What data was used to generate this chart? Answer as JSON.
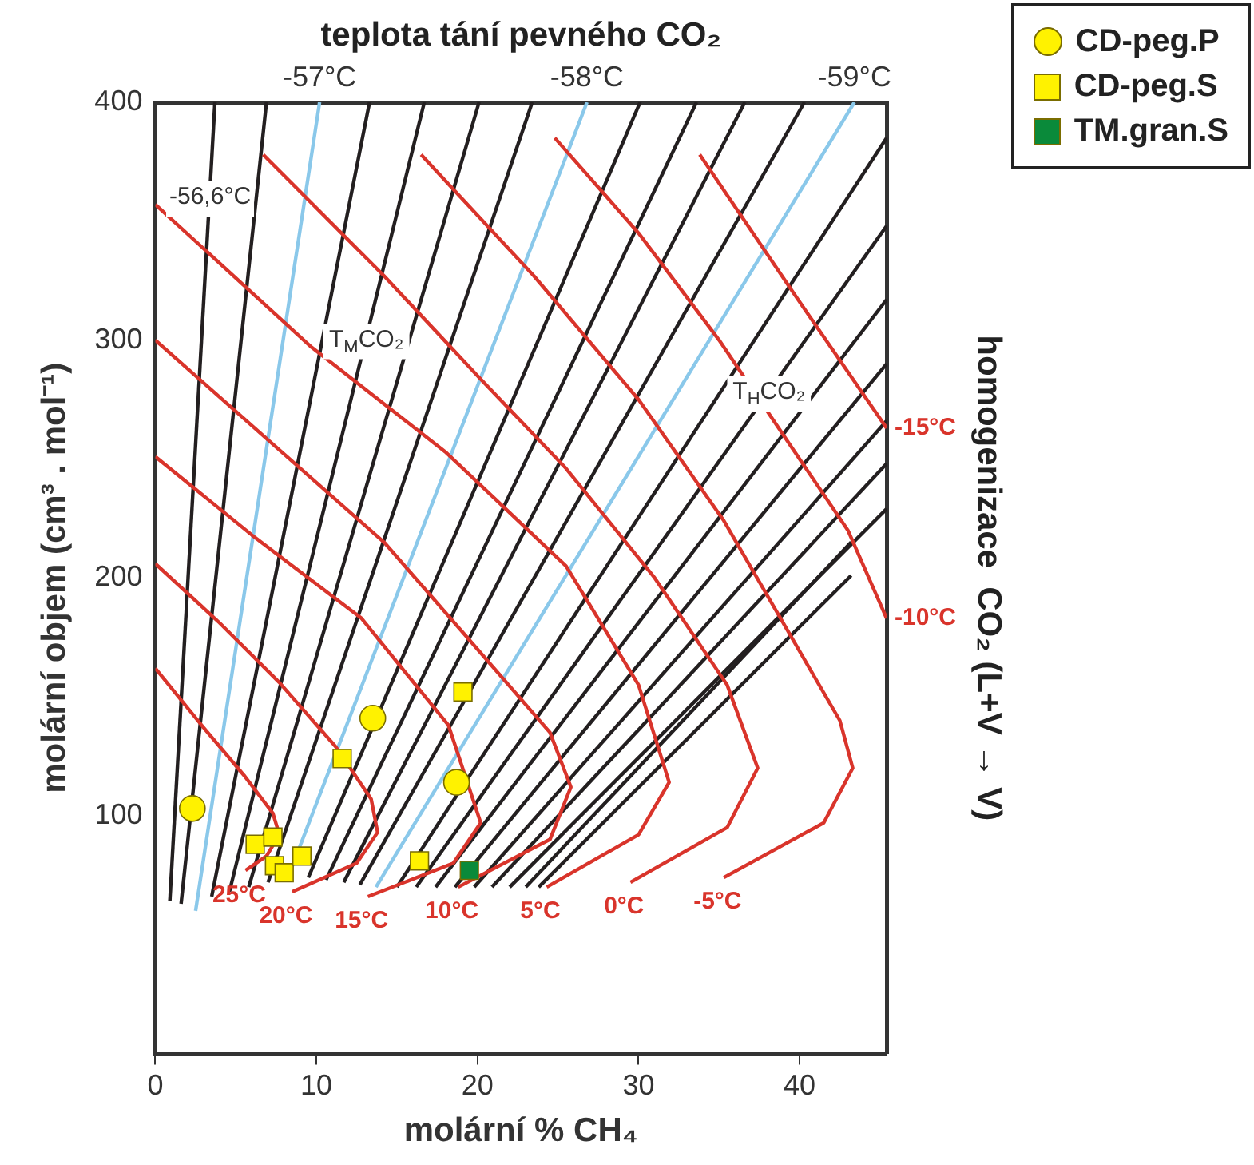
{
  "chart_data": {
    "type": "scatter",
    "xlabel": "molární % CH₄",
    "ylabel": "molární objem (cm³ . mol⁻¹)",
    "x2label": "teplota tání pevného CO₂",
    "y2label": "homogenizace  CO₂ (L+V → V)",
    "xlim": [
      0,
      45.4
    ],
    "xticks": [
      0,
      10,
      20,
      30,
      40
    ],
    "ylim": [
      0,
      400
    ],
    "yticks": [
      100,
      200,
      300,
      400
    ],
    "legend": "top right",
    "grid": false,
    "annotations": [
      {
        "text": "-56,6°C",
        "x": 3.4,
        "y": 360
      },
      {
        "text": "T$_{M}$CO₂",
        "x": 13.1,
        "y": 300
      },
      {
        "text": "T$_{H}$CO₂",
        "x": 38.1,
        "y": 278
      }
    ],
    "series": [
      {
        "name": "CD-peg.P",
        "marker": "circle",
        "color": "#fff200",
        "x": [
          2.3,
          13.5,
          18.7
        ],
        "values": [
          103,
          141,
          114
        ]
      },
      {
        "name": "CD-peg.S",
        "marker": "square",
        "color": "#fff200",
        "x": [
          6.2,
          7.3,
          7.4,
          8.0,
          9.1,
          11.6,
          19.1,
          16.4
        ],
        "values": [
          88,
          91,
          79,
          76,
          83,
          124,
          152,
          81
        ]
      },
      {
        "name": "TM.gran.S",
        "marker": "square",
        "color": "#0a8a3a",
        "x": [
          19.5
        ],
        "values": [
          77
        ]
      },
      {
        "name": "25°C",
        "type": "line",
        "color": "#d9342b",
        "x": [
          0,
          3,
          5.5,
          7.3,
          7.7,
          6.9,
          5.6
        ],
        "values": [
          162,
          137,
          117,
          101,
          92,
          83,
          77
        ]
      },
      {
        "name": "20°C",
        "type": "line",
        "color": "#d9342b",
        "x": [
          0,
          4,
          7.7,
          11.2,
          13.4,
          13.8,
          12.5,
          8.5
        ],
        "values": [
          206,
          181,
          156,
          129,
          107,
          93,
          80,
          68
        ]
      },
      {
        "name": "15°C",
        "type": "line",
        "color": "#d9342b",
        "x": [
          0,
          6,
          12.8,
          18.2,
          20.2,
          18.5,
          13.2
        ],
        "values": [
          251,
          218,
          183,
          138,
          97,
          80,
          66
        ]
      },
      {
        "name": "10°C",
        "type": "line",
        "color": "#d9342b",
        "x": [
          0,
          7,
          14.2,
          20,
          24.5,
          25.8,
          24.5,
          18.8
        ],
        "values": [
          300,
          258,
          215,
          170,
          135,
          112,
          90,
          70
        ]
      },
      {
        "name": "5°C",
        "type": "line",
        "color": "#d9342b",
        "x": [
          0,
          9.7,
          18,
          25.5,
          30,
          31.9,
          30,
          24.3
        ],
        "values": [
          357,
          297,
          253,
          205,
          155,
          114,
          92,
          70
        ]
      },
      {
        "name": "0°C",
        "type": "line",
        "color": "#d9342b",
        "x": [
          6.7,
          14.2,
          20,
          25.5,
          31,
          35.5,
          37.4,
          35.5,
          29.5
        ],
        "values": [
          378,
          327,
          285,
          246,
          200,
          155,
          120,
          95,
          72
        ]
      },
      {
        "name": "-5°C",
        "type": "line",
        "color": "#d9342b",
        "x": [
          16.5,
          23.5,
          30,
          35.3,
          39.5,
          42.5,
          43.3,
          41.5,
          35.3
        ],
        "values": [
          378,
          327,
          275,
          224,
          175,
          140,
          120,
          97,
          74
        ]
      },
      {
        "name": "-10°C",
        "type": "line",
        "color": "#d9342b",
        "x": [
          24.8,
          30,
          35,
          40,
          43,
          45.4
        ],
        "values": [
          385,
          345,
          300,
          250,
          220,
          183
        ]
      },
      {
        "name": "-15°C",
        "type": "line",
        "color": "#d9342b",
        "x": [
          33.8,
          39.6,
          45.4
        ],
        "values": [
          378,
          320,
          263
        ]
      },
      {
        "name": "-57°C",
        "type": "line",
        "color": "#8ac8ea",
        "x": [
          2.5,
          10.2
        ],
        "values": [
          60,
          400
        ]
      },
      {
        "name": "-58°C",
        "type": "line",
        "color": "#8ac8ea",
        "x": [
          8.4,
          26.8
        ],
        "values": [
          77,
          400
        ]
      },
      {
        "name": "-59°C",
        "type": "line",
        "color": "#8ac8ea",
        "x": [
          13.7,
          43.4
        ],
        "values": [
          70,
          400
        ]
      },
      {
        "type": "line",
        "color": "#231f20",
        "x": [
          0.9,
          3.7
        ],
        "values": [
          64,
          400
        ]
      },
      {
        "type": "line",
        "color": "#231f20",
        "x": [
          1.6,
          6.9
        ],
        "values": [
          63,
          400
        ]
      },
      {
        "type": "line",
        "color": "#231f20",
        "x": [
          3.5,
          13.3
        ],
        "values": [
          66,
          400
        ]
      },
      {
        "type": "line",
        "color": "#231f20",
        "x": [
          4.6,
          16.7
        ],
        "values": [
          68,
          400
        ]
      },
      {
        "type": "line",
        "color": "#231f20",
        "x": [
          5.8,
          20.1
        ],
        "values": [
          70,
          400
        ]
      },
      {
        "type": "line",
        "color": "#231f20",
        "x": [
          7.0,
          23.4
        ],
        "values": [
          72,
          400
        ]
      },
      {
        "type": "line",
        "color": "#231f20",
        "x": [
          9.5,
          30.1
        ],
        "values": [
          74,
          400
        ]
      },
      {
        "type": "line",
        "color": "#231f20",
        "x": [
          10.6,
          33.6
        ],
        "values": [
          73,
          400
        ]
      },
      {
        "type": "line",
        "color": "#231f20",
        "x": [
          11.7,
          36.6
        ],
        "values": [
          72,
          400
        ]
      },
      {
        "type": "line",
        "color": "#231f20",
        "x": [
          12.7,
          40.3
        ],
        "values": [
          71,
          400
        ]
      },
      {
        "type": "line",
        "color": "#231f20",
        "x": [
          15.0,
          45.4
        ],
        "values": [
          70,
          385
        ]
      },
      {
        "type": "line",
        "color": "#231f20",
        "x": [
          16.2,
          45.4
        ],
        "values": [
          70,
          348
        ]
      },
      {
        "type": "line",
        "color": "#231f20",
        "x": [
          17.4,
          45.4
        ],
        "values": [
          70,
          317
        ]
      },
      {
        "type": "line",
        "color": "#231f20",
        "x": [
          18.6,
          45.4
        ],
        "values": [
          70,
          290
        ]
      },
      {
        "type": "line",
        "color": "#231f20",
        "x": [
          19.8,
          45.4
        ],
        "values": [
          70,
          266
        ]
      },
      {
        "type": "line",
        "color": "#231f20",
        "x": [
          20.9,
          45.4
        ],
        "values": [
          70,
          248
        ]
      },
      {
        "type": "line",
        "color": "#231f20",
        "x": [
          22.0,
          45.4
        ],
        "values": [
          70,
          229
        ]
      },
      {
        "type": "line",
        "color": "#231f20",
        "x": [
          23.0,
          43.2
        ],
        "values": [
          70,
          215
        ]
      },
      {
        "type": "line",
        "color": "#231f20",
        "x": [
          23.8,
          43.2
        ],
        "values": [
          70,
          201
        ]
      }
    ]
  }
}
